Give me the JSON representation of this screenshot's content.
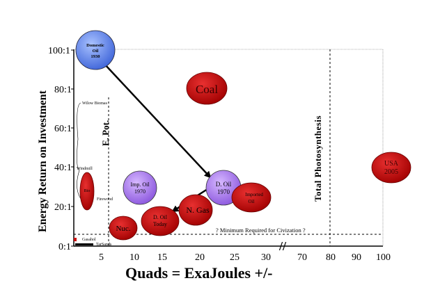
{
  "chart_data": {
    "type": "bubble",
    "xlabel": "Quads = ExaJoules +/-",
    "ylabel": "Energy Return on Investment",
    "x_ticks": [
      "5",
      "10",
      "15",
      "20",
      "25",
      "30",
      "70",
      "80",
      "90",
      "100"
    ],
    "y_ticks": [
      "100:1",
      "80:1",
      "60:1",
      "40:1",
      "20:1",
      "0:1"
    ],
    "y_range": [
      0,
      100
    ],
    "reference_lines": [
      {
        "label": "E. Pot.",
        "axis": "x",
        "value": 6,
        "style": "dashed"
      },
      {
        "label": "Total Photosynthesis",
        "axis": "x",
        "value": 80,
        "style": "dashed"
      },
      {
        "label": "? Minimum Required for Civization ?",
        "axis": "y",
        "value": 5,
        "style": "dashed"
      }
    ],
    "bubbles": [
      {
        "label": "Domestic Oil 1930",
        "x": 5,
        "y": 100,
        "color": "#5b7fe0",
        "kind": "blue"
      },
      {
        "label": "Coal",
        "x": 22,
        "y": 80,
        "color": "#cc1111",
        "kind": "red"
      },
      {
        "label": "Imp. Oil 1970",
        "x": 11,
        "y": 30,
        "color": "#9b6ee0",
        "kind": "purple"
      },
      {
        "label": "D. Oil 1970",
        "x": 24,
        "y": 30,
        "color": "#9b6ee0",
        "kind": "purple"
      },
      {
        "label": "Imported Oil",
        "x": 28,
        "y": 24,
        "color": "#cc1111",
        "kind": "red"
      },
      {
        "label": "N. Gas",
        "x": 20,
        "y": 18,
        "color": "#cc1111",
        "kind": "red"
      },
      {
        "label": "D. Oil Today",
        "x": 15,
        "y": 13,
        "color": "#cc1111",
        "kind": "red"
      },
      {
        "label": "Nuc.",
        "x": 8,
        "y": 9,
        "color": "#cc1111",
        "kind": "red"
      },
      {
        "label": "Bio",
        "x": 3,
        "y": 27,
        "color": "#cc1111",
        "kind": "red"
      },
      {
        "label": "USA 2005",
        "x": 100,
        "y": 40,
        "color": "#cc1111",
        "kind": "red"
      }
    ],
    "annotations": [
      "Wilow Biomas",
      "Windmill",
      "Firewood",
      "Gasahol",
      "TarSands"
    ],
    "arrows": [
      {
        "from": "Domestic Oil 1930",
        "to": "D. Oil 1970"
      },
      {
        "from": "D. Oil 1970",
        "to": "D. Oil Today"
      }
    ],
    "axis_break": "//"
  }
}
